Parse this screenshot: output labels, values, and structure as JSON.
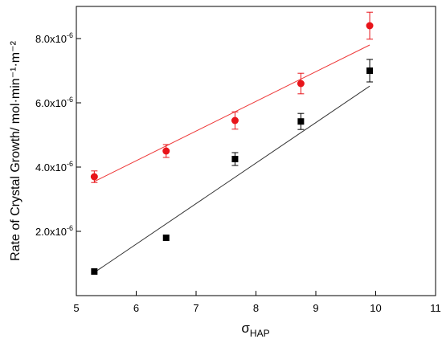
{
  "chart_data": {
    "type": "scatter",
    "xlabel": "σ",
    "xlabel_sub": "HAP",
    "ylabel": "Rate of Crystal Growth/ mol·min⁻¹·m⁻²",
    "xlim": [
      5,
      11
    ],
    "ylim": [
      0,
      9e-06
    ],
    "grid": false,
    "x_ticks": [
      {
        "value": 5,
        "label": "5"
      },
      {
        "value": 6,
        "label": "6"
      },
      {
        "value": 7,
        "label": "7"
      },
      {
        "value": 8,
        "label": "8"
      },
      {
        "value": 9,
        "label": "9"
      },
      {
        "value": 10,
        "label": "10"
      },
      {
        "value": 11,
        "label": "11"
      }
    ],
    "y_ticks": [
      {
        "value": 2e-06,
        "mantissa": "2.0x10",
        "exponent": "-6"
      },
      {
        "value": 4e-06,
        "mantissa": "4.0x10",
        "exponent": "-6"
      },
      {
        "value": 6e-06,
        "mantissa": "6.0x10",
        "exponent": "-6"
      },
      {
        "value": 8e-06,
        "mantissa": "8.0x10",
        "exponent": "-6"
      }
    ],
    "series": [
      {
        "marker": "square",
        "color": "#000000",
        "fit_color": "#333333",
        "x": [
          5.3,
          6.5,
          7.65,
          8.75,
          9.9
        ],
        "y": [
          7.5e-07,
          1.8e-06,
          4.25e-06,
          5.42e-06,
          7e-06
        ],
        "err": [
          0,
          0,
          2e-07,
          2.5e-07,
          3.5e-07
        ],
        "fit": {
          "x": [
            5.3,
            9.9
          ],
          "y": [
            7.2e-07,
            6.52e-06
          ]
        }
      },
      {
        "marker": "circle",
        "color": "#e8141a",
        "fit_color": "#ee3a3a",
        "x": [
          5.3,
          6.5,
          7.65,
          8.75,
          9.9
        ],
        "y": [
          3.7e-06,
          4.5e-06,
          5.45e-06,
          6.6e-06,
          8.4e-06
        ],
        "err": [
          1.8e-07,
          2e-07,
          2.7e-07,
          3.2e-07,
          4.2e-07
        ],
        "fit": {
          "x": [
            5.3,
            9.9
          ],
          "y": [
            3.55e-06,
            7.8e-06
          ]
        }
      }
    ]
  }
}
